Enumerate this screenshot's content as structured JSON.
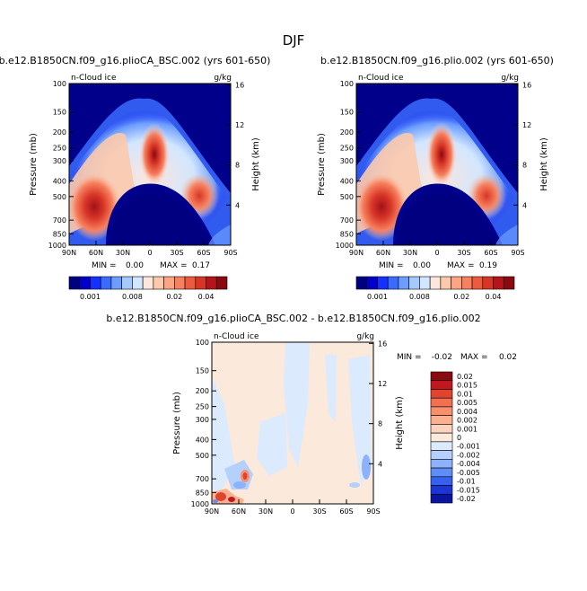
{
  "figure": {
    "title": "DJF"
  },
  "chart_data": [
    {
      "type": "heatmap",
      "title": "b.e12.B1850CN.f09_g16.plioCA_BSC.002 (yrs 601-650)",
      "variable": "n-Cloud ice",
      "units": "g/kg",
      "xlabel": "",
      "ylabel": "Pressure (mb)",
      "y2label": "Height (km)",
      "x_ticks": [
        "90N",
        "60N",
        "30N",
        "0",
        "30S",
        "60S",
        "90S"
      ],
      "y_ticks": [
        "100",
        "150",
        "200",
        "250",
        "300",
        "400",
        "500",
        "700",
        "850",
        "1000"
      ],
      "y_tick_values": [
        100,
        150,
        200,
        250,
        300,
        400,
        500,
        700,
        850,
        1000
      ],
      "y2_ticks": [
        "16",
        "12",
        "8",
        "4"
      ],
      "y2_tick_values": [
        16,
        12,
        8,
        4
      ],
      "ylim": [
        1000,
        100
      ],
      "min_label": "MIN =",
      "min": "0.00",
      "max_label": "MAX =",
      "max": "0.17",
      "colorbar_labels": [
        "0.001",
        "0.008",
        "0.02",
        "0.04"
      ],
      "colors": [
        "#000080",
        "#0000c8",
        "#1530ff",
        "#3a6aff",
        "#6b9cff",
        "#a5c8ff",
        "#d2e6ff",
        "#fbe7dc",
        "#fcc9ad",
        "#fba583",
        "#f7815f",
        "#ec5b3f",
        "#d83526",
        "#b5141b",
        "#8a0a10"
      ]
    },
    {
      "type": "heatmap",
      "title": "b.e12.B1850CN.f09_g16.plio.002 (yrs 601-650)",
      "variable": "n-Cloud ice",
      "units": "g/kg",
      "xlabel": "",
      "ylabel": "Pressure (mb)",
      "y2label": "Height (km)",
      "x_ticks": [
        "90N",
        "60N",
        "30N",
        "0",
        "30S",
        "60S",
        "90S"
      ],
      "y_ticks": [
        "100",
        "150",
        "200",
        "250",
        "300",
        "400",
        "500",
        "700",
        "850",
        "1000"
      ],
      "y_tick_values": [
        100,
        150,
        200,
        250,
        300,
        400,
        500,
        700,
        850,
        1000
      ],
      "y2_ticks": [
        "16",
        "12",
        "8",
        "4"
      ],
      "y2_tick_values": [
        16,
        12,
        8,
        4
      ],
      "ylim": [
        1000,
        100
      ],
      "min_label": "MIN =",
      "min": "0.00",
      "max_label": "MAX =",
      "max": "0.19",
      "colorbar_labels": [
        "0.001",
        "0.008",
        "0.02",
        "0.04"
      ],
      "colors": [
        "#000080",
        "#0000c8",
        "#1530ff",
        "#3a6aff",
        "#6b9cff",
        "#a5c8ff",
        "#d2e6ff",
        "#fbe7dc",
        "#fcc9ad",
        "#fba583",
        "#f7815f",
        "#ec5b3f",
        "#d83526",
        "#b5141b",
        "#8a0a10"
      ]
    },
    {
      "type": "heatmap",
      "title": "b.e12.B1850CN.f09_g16.plioCA_BSC.002 - b.e12.B1850CN.f09_g16.plio.002",
      "variable": "n-Cloud ice",
      "units": "g/kg",
      "xlabel": "",
      "ylabel": "Pressure (mb)",
      "y2label": "Height (km)",
      "x_ticks": [
        "90N",
        "60N",
        "30N",
        "0",
        "30S",
        "60S",
        "90S"
      ],
      "y_ticks": [
        "100",
        "150",
        "200",
        "250",
        "300",
        "400",
        "500",
        "700",
        "850",
        "1000"
      ],
      "y_tick_values": [
        100,
        150,
        200,
        250,
        300,
        400,
        500,
        700,
        850,
        1000
      ],
      "y2_ticks": [
        "16",
        "12",
        "8",
        "4"
      ],
      "y2_tick_values": [
        16,
        12,
        8,
        4
      ],
      "ylim": [
        1000,
        100
      ],
      "min_label": "MIN =",
      "min": "-0.02",
      "max_label": "MAX =",
      "max": "0.02",
      "colorbar_labels": [
        "0.02",
        "0.015",
        "0.01",
        "0.005",
        "0.004",
        "0.002",
        "0.001",
        "0",
        "-0.001",
        "-0.002",
        "-0.004",
        "-0.005",
        "-0.01",
        "-0.015",
        "-0.02"
      ],
      "colors": [
        "#8a0a10",
        "#c0181f",
        "#e0442f",
        "#f07050",
        "#f7906c",
        "#fcb08f",
        "#fdd3bd",
        "#fbe9dc",
        "#dbeafd",
        "#b5d0fc",
        "#8cb2fb",
        "#5d8df5",
        "#3561ee",
        "#1b36d4",
        "#0a14a0"
      ]
    }
  ]
}
